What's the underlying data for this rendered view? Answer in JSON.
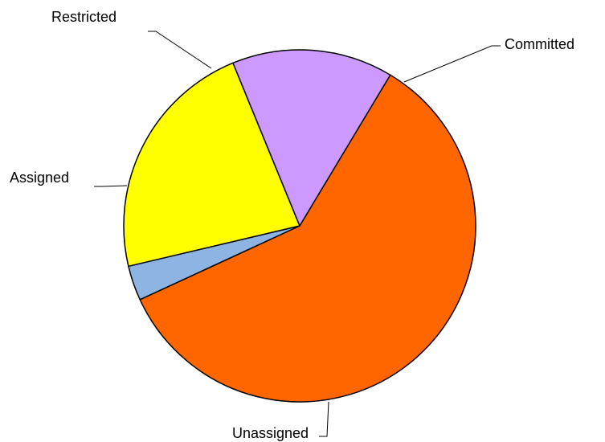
{
  "chart_data": {
    "type": "pie",
    "title": "",
    "categories": [
      "Unassigned",
      "Assigned",
      "Restricted",
      "Committed"
    ],
    "values": [
      59.5,
      3.2,
      22.5,
      14.8
    ],
    "start_angle_deg": -59,
    "direction": "clockwise",
    "colors": {
      "Unassigned": "#FF6600",
      "Assigned": "#8DB4E2",
      "Restricted": "#FFFF00",
      "Committed": "#CC99FF"
    },
    "legend": "none",
    "labels": {
      "Restricted": "Restricted",
      "Committed": "Committed",
      "Assigned": "Assigned",
      "Unassigned": "Unassigned"
    }
  }
}
